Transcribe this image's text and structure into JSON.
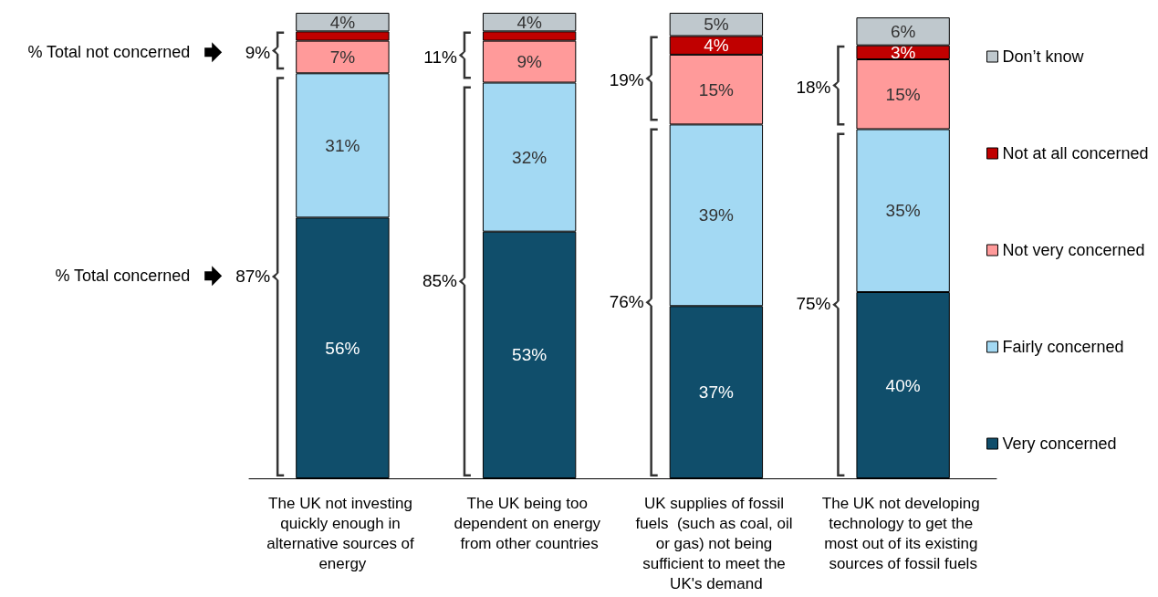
{
  "chart_data": {
    "type": "bar",
    "stacked": true,
    "legend": "right",
    "categories": [
      "The UK not investing quickly enough in alternative sources of energy",
      "The UK being too dependent on energy from other countries",
      "UK supplies of fossil fuels  (such as coal, oil or gas) not being sufficient to meet the UK's demand",
      "The UK not developing technology to get the most out of its existing sources of fossil fuels"
    ],
    "series": [
      {
        "name": "Very concerned",
        "color": "#104e6b",
        "values": [
          56,
          53,
          37,
          40
        ],
        "value_labels": [
          "56%",
          "53%",
          "37%",
          "40%"
        ]
      },
      {
        "name": "Fairly concerned",
        "color": "#a3d9f3",
        "values": [
          31,
          32,
          39,
          35
        ],
        "value_labels": [
          "31%",
          "32%",
          "39%",
          "35%"
        ]
      },
      {
        "name": "Not very concerned",
        "color": "#ff9a9a",
        "values": [
          7,
          9,
          15,
          15
        ],
        "value_labels": [
          "7%",
          "9%",
          "15%",
          "15%"
        ]
      },
      {
        "name": "Not at all concerned",
        "color": "#c00000",
        "values": [
          2,
          2,
          4,
          3
        ],
        "value_labels": [
          null,
          null,
          "4%",
          "3%"
        ]
      },
      {
        "name": "Don’t know",
        "color": "#bfc8cd",
        "values": [
          4,
          4,
          5,
          6
        ],
        "value_labels": [
          "4%",
          "4%",
          "5%",
          "6%"
        ]
      }
    ],
    "annotations": [
      "% Total not concerned",
      "% Total concerned",
      "9%",
      "87%",
      "11%",
      "85%",
      "19%",
      "76%",
      "18%",
      "75%"
    ]
  }
}
